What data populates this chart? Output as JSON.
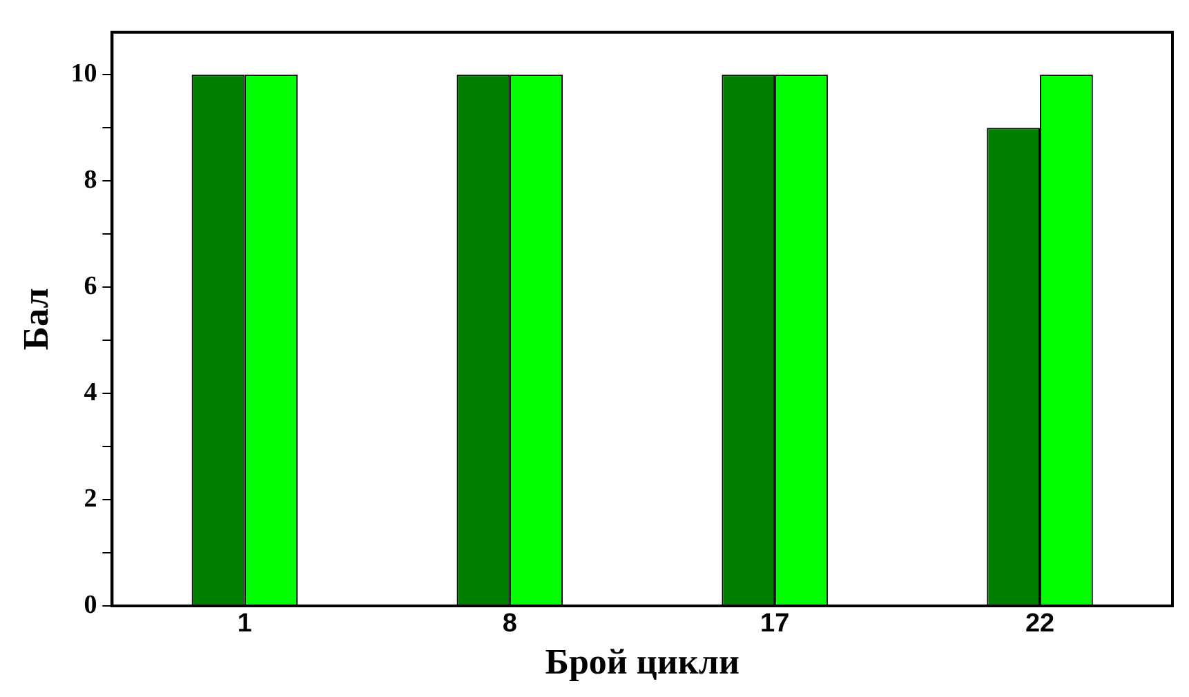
{
  "chart_data": {
    "type": "bar",
    "xlabel": "Брой цикли",
    "ylabel": "Бал",
    "categories": [
      "1",
      "8",
      "17",
      "22"
    ],
    "series": [
      {
        "color": "#007f00",
        "values": [
          10,
          10,
          10,
          9
        ]
      },
      {
        "color": "#00ff00",
        "values": [
          10,
          10,
          10,
          10
        ]
      }
    ],
    "ylim": [
      0,
      10.8
    ],
    "yticks": [
      0,
      {
        "value": 1,
        "label": null
      },
      2,
      {
        "value": 3,
        "label": null
      },
      4,
      {
        "value": 5,
        "label": null
      },
      6,
      {
        "value": 7,
        "label": null
      },
      8,
      {
        "value": 9,
        "label": null
      },
      10
    ],
    "grid": false,
    "legend": false
  }
}
